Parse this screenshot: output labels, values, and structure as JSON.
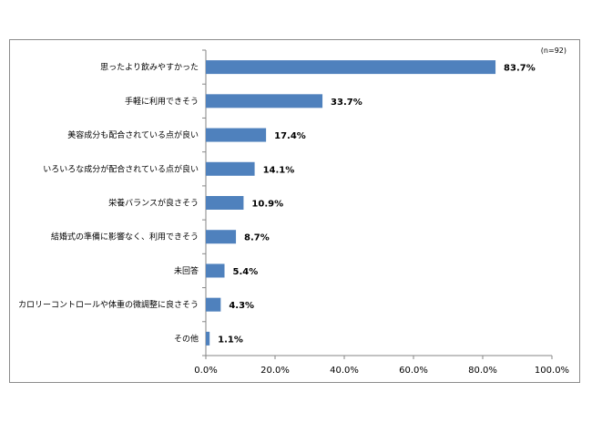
{
  "chart_data": {
    "type": "bar",
    "orientation": "horizontal",
    "note": "(n=92)",
    "categories": [
      "思ったより飲みやすかった",
      "手軽に利用できそう",
      "美容成分も配合されている点が良い",
      "いろいろな成分が配合されている点が良い",
      "栄養バランスが良さそう",
      "結婚式の準備に影響なく、利用できそう",
      "未回答",
      "カロリーコントロールや体重の微調整に良さそう",
      "その他"
    ],
    "values": [
      83.7,
      33.7,
      17.4,
      14.1,
      10.9,
      8.7,
      5.4,
      4.3,
      1.1
    ],
    "value_labels": [
      "83.7%",
      "33.7%",
      "17.4%",
      "14.1%",
      "10.9%",
      "8.7%",
      "5.4%",
      "4.3%",
      "1.1%"
    ],
    "xlim": [
      0,
      100
    ],
    "xticks": [
      "0.0%",
      "20.0%",
      "40.0%",
      "60.0%",
      "80.0%",
      "100.0%"
    ],
    "grid": false,
    "legend": "none",
    "bar_color": "#4f81bd"
  }
}
